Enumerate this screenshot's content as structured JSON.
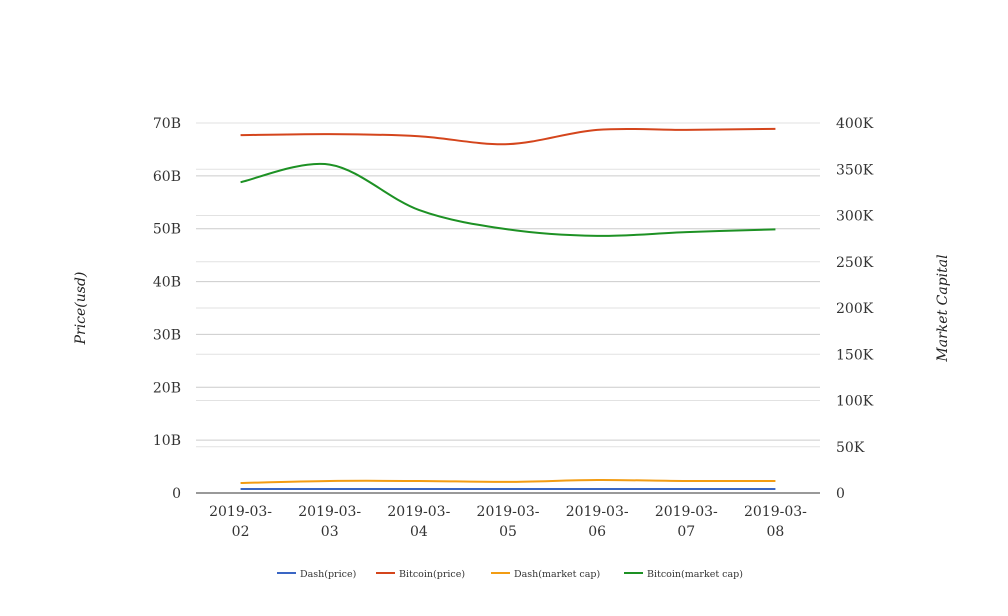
{
  "chart_data": {
    "type": "line",
    "title": "",
    "categories": [
      "2019-03-02",
      "2019-03-03",
      "2019-03-04",
      "2019-03-05",
      "2019-03-06",
      "2019-03-07",
      "2019-03-08"
    ],
    "category_lines": [
      [
        "2019-03-",
        "02"
      ],
      [
        "2019-03-",
        "03"
      ],
      [
        "2019-03-",
        "04"
      ],
      [
        "2019-03-",
        "05"
      ],
      [
        "2019-03-",
        "06"
      ],
      [
        "2019-03-",
        "07"
      ],
      [
        "2019-03-",
        "08"
      ]
    ],
    "ylabel": "Price(usd)",
    "y2label": "Market Capital",
    "ylim": [
      0,
      70000000000
    ],
    "y2lim": [
      0,
      400000
    ],
    "yticks": [
      {
        "value": 0,
        "label": "0"
      },
      {
        "value": 10000000000,
        "label": "10B"
      },
      {
        "value": 20000000000,
        "label": "20B"
      },
      {
        "value": 30000000000,
        "label": "30B"
      },
      {
        "value": 40000000000,
        "label": "40B"
      },
      {
        "value": 50000000000,
        "label": "50B"
      },
      {
        "value": 60000000000,
        "label": "60B"
      },
      {
        "value": 70000000000,
        "label": "70B"
      }
    ],
    "y2ticks": [
      {
        "value": 0,
        "label": "0"
      },
      {
        "value": 50000,
        "label": "50K"
      },
      {
        "value": 100000,
        "label": "100K"
      },
      {
        "value": 150000,
        "label": "150K"
      },
      {
        "value": 200000,
        "label": "200K"
      },
      {
        "value": 250000,
        "label": "250K"
      },
      {
        "value": 300000,
        "label": "300K"
      },
      {
        "value": 350000,
        "label": "350K"
      },
      {
        "value": 400000,
        "label": "400K"
      }
    ],
    "grid": true,
    "legend_position": "bottom",
    "series": [
      {
        "name": "Dash(price)",
        "axis": "left",
        "color": "#3a66c4",
        "values": [
          760000000,
          760000000,
          760000000,
          760000000,
          760000000,
          760000000,
          760000000
        ]
      },
      {
        "name": "Bitcoin(price)",
        "axis": "left",
        "color": "#d4451c",
        "values": [
          67700000000,
          67900000000,
          67500000000,
          66000000000,
          68700000000,
          68700000000,
          68900000000
        ]
      },
      {
        "name": "Dash(market cap)",
        "axis": "right",
        "color": "#f29c13",
        "values": [
          10800,
          13000,
          13000,
          12000,
          14000,
          13000,
          13000
        ]
      },
      {
        "name": "Bitcoin(market cap)",
        "axis": "right",
        "color": "#1d9124",
        "values": [
          336000,
          355000,
          306000,
          285000,
          278000,
          282000,
          285000
        ]
      }
    ]
  }
}
